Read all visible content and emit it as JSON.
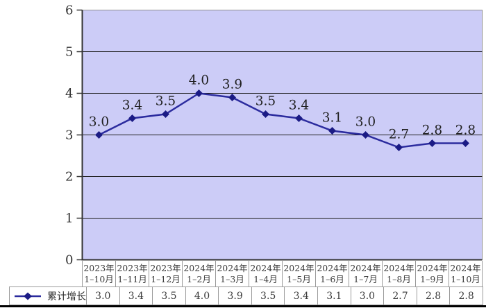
{
  "chart_data": {
    "type": "line",
    "title": "",
    "xlabel": "",
    "ylabel": "",
    "grid": true,
    "legend_position": "bottom-left-table",
    "y_axis": {
      "min": 0,
      "max": 6,
      "step": 1,
      "tick_labels": [
        "0",
        "1",
        "2",
        "3",
        "4",
        "5",
        "6"
      ]
    },
    "categories": [
      {
        "line1": "2023年",
        "line2": "1–10月"
      },
      {
        "line1": "2023年",
        "line2": "1–11月"
      },
      {
        "line1": "2023年",
        "line2": "1–12月"
      },
      {
        "line1": "2024年",
        "line2": "1–2月"
      },
      {
        "line1": "2024年",
        "line2": "1–3月"
      },
      {
        "line1": "2024年",
        "line2": "1–4月"
      },
      {
        "line1": "2024年",
        "line2": "1–5月"
      },
      {
        "line1": "2024年",
        "line2": "1–6月"
      },
      {
        "line1": "2024年",
        "line2": "1–7月"
      },
      {
        "line1": "2024年",
        "line2": "1–8月"
      },
      {
        "line1": "2024年",
        "line2": "1–9月"
      },
      {
        "line1": "2024年",
        "line2": "1–10月"
      }
    ],
    "series": [
      {
        "name": "累计增长",
        "values": [
          3.0,
          3.4,
          3.5,
          4.0,
          3.9,
          3.5,
          3.4,
          3.1,
          3.0,
          2.7,
          2.8,
          2.8
        ],
        "value_labels": [
          "3.0",
          "3.4",
          "3.5",
          "4.0",
          "3.9",
          "3.5",
          "3.4",
          "3.1",
          "3.0",
          "2.7",
          "2.8",
          "2.8"
        ]
      }
    ],
    "colors": {
      "line": "#2B2B9E",
      "marker": "#1B1B85",
      "plot_background": "#CCCCF7",
      "gridline": "#1a1a1a",
      "border": "#8f8f8f",
      "axis": "#333333",
      "label_text": "#1f1f1f",
      "tick_text": "#333333"
    }
  }
}
